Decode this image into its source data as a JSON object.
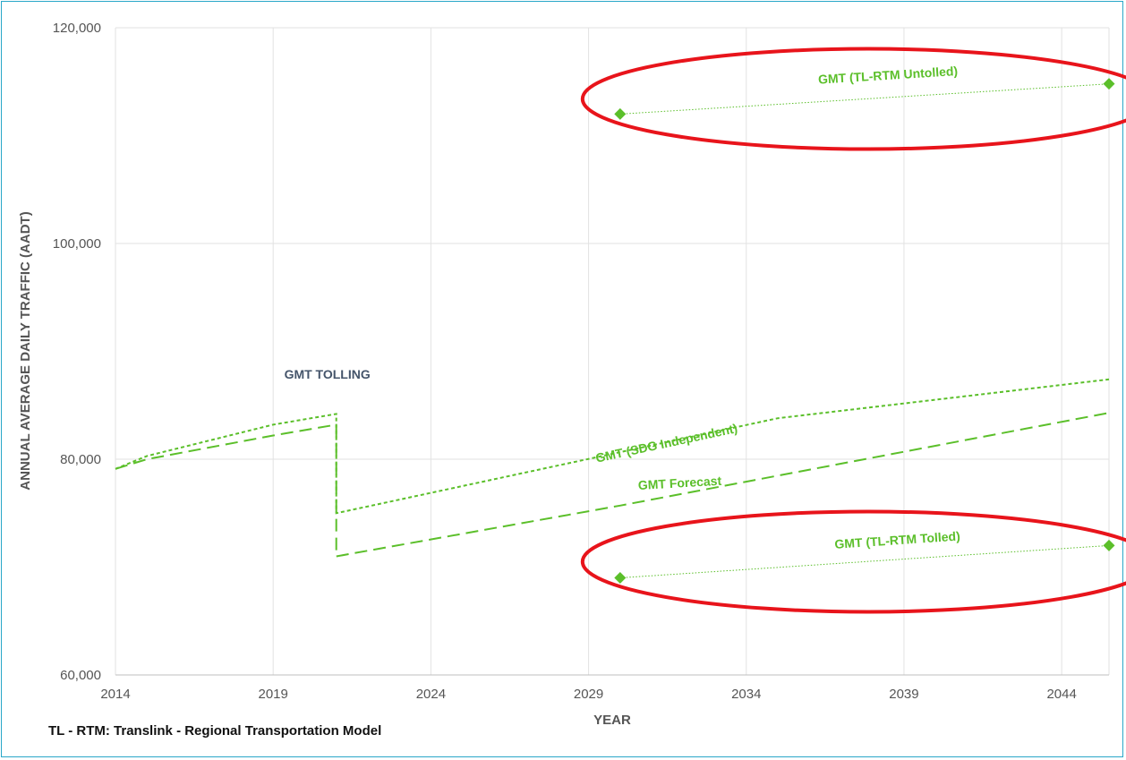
{
  "chart_data": {
    "type": "line",
    "xlabel": "YEAR",
    "ylabel": "ANNUAL AVERAGE DAILY TRAFFIC (AADT)",
    "xlim": [
      2014,
      2045.5
    ],
    "ylim": [
      60000,
      120000
    ],
    "x_ticks": [
      "2014",
      "2019",
      "2024",
      "2029",
      "2034",
      "2039",
      "2044"
    ],
    "y_ticks": [
      "60,000",
      "80,000",
      "100,000",
      "120,000"
    ],
    "grid": true,
    "colors": {
      "series": "#5bbf2a",
      "highlight": "#e8141b",
      "annotation": "#44546a"
    },
    "series": [
      {
        "name": "GMT (SDG Independent)",
        "style": "short-dash",
        "x": [
          2014,
          2015,
          2019,
          2021,
          2021,
          2035,
          2045.5
        ],
        "y": [
          79100,
          80300,
          83200,
          84200,
          75000,
          83800,
          87400
        ]
      },
      {
        "name": "GMT Forecast",
        "style": "long-dash",
        "x": [
          2014,
          2015,
          2019,
          2021,
          2021,
          2030,
          2045.5
        ],
        "y": [
          79100,
          80000,
          82200,
          83200,
          71000,
          75700,
          84300
        ]
      },
      {
        "name": "GMT (TL-RTM Untolled)",
        "style": "dotted-markers",
        "x": [
          2030,
          2045.5
        ],
        "y": [
          112000,
          114800
        ]
      },
      {
        "name": "GMT (TL-RTM Tolled)",
        "style": "dotted-markers",
        "x": [
          2030,
          2045.5
        ],
        "y": [
          69000,
          72000
        ]
      }
    ],
    "annotations": [
      {
        "text": "GMT TOLLING",
        "x": 2021,
        "y": 87800
      }
    ],
    "highlights": [
      "GMT (TL-RTM Untolled)",
      "GMT (TL-RTM Tolled)"
    ],
    "footnote": "TL - RTM: Translink - Regional Transportation Model"
  }
}
